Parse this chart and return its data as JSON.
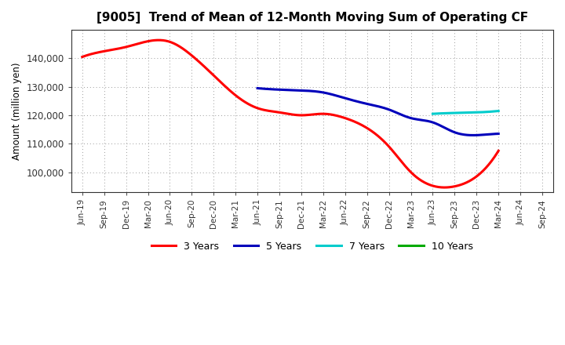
{
  "title": "[9005]  Trend of Mean of 12-Month Moving Sum of Operating CF",
  "ylabel": "Amount (million yen)",
  "background_color": "#ffffff",
  "grid_color": "#999999",
  "x_labels": [
    "Jun-19",
    "Sep-19",
    "Dec-19",
    "Mar-20",
    "Jun-20",
    "Sep-20",
    "Dec-20",
    "Mar-21",
    "Jun-21",
    "Sep-21",
    "Dec-21",
    "Mar-22",
    "Jun-22",
    "Sep-22",
    "Dec-22",
    "Mar-23",
    "Jun-23",
    "Sep-23",
    "Dec-23",
    "Mar-24",
    "Jun-24",
    "Sep-24"
  ],
  "series_3y": {
    "color": "#ff0000",
    "label": "3 Years",
    "values": [
      140500,
      142500,
      144000,
      146000,
      145800,
      141000,
      134000,
      127000,
      122500,
      121000,
      120000,
      120500,
      119000,
      115500,
      109000,
      100000,
      95200,
      95000,
      98500,
      107500,
      null,
      null
    ]
  },
  "series_5y": {
    "color": "#0000bb",
    "label": "5 Years",
    "values": [
      null,
      null,
      null,
      null,
      null,
      null,
      null,
      null,
      129500,
      129000,
      128700,
      128000,
      126000,
      124000,
      122000,
      119000,
      117500,
      114000,
      113000,
      113500,
      null,
      null
    ]
  },
  "series_7y": {
    "color": "#00cccc",
    "label": "7 Years",
    "values": [
      null,
      null,
      null,
      null,
      null,
      null,
      null,
      null,
      null,
      null,
      null,
      null,
      null,
      null,
      null,
      null,
      120500,
      120800,
      121000,
      121500,
      null,
      null
    ]
  },
  "series_10y": {
    "color": "#00aa00",
    "label": "10 Years",
    "values": [
      null,
      null,
      null,
      null,
      null,
      null,
      null,
      null,
      null,
      null,
      null,
      null,
      null,
      null,
      null,
      null,
      null,
      null,
      null,
      null,
      null,
      null
    ]
  },
  "ylim": [
    93000,
    150000
  ],
  "yticks": [
    100000,
    110000,
    120000,
    130000,
    140000
  ],
  "legend_items": [
    {
      "label": "3 Years",
      "color": "#ff0000"
    },
    {
      "label": "5 Years",
      "color": "#0000bb"
    },
    {
      "label": "7 Years",
      "color": "#00cccc"
    },
    {
      "label": "10 Years",
      "color": "#00aa00"
    }
  ]
}
